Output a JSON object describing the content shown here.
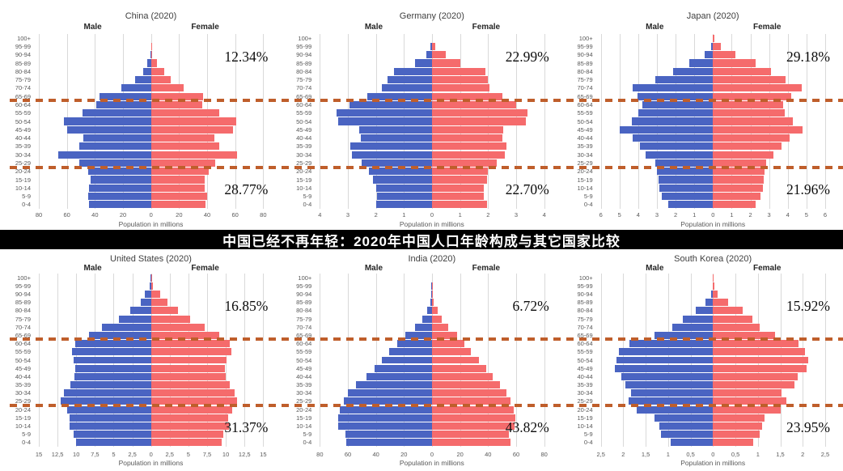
{
  "banner": {
    "title": "中国已经不再年轻：2020年中国人口年龄构成与其它国家比较",
    "bg_color": "#000000",
    "text_color": "#ffffff"
  },
  "shared": {
    "male_label": "Male",
    "female_label": "Female",
    "xlabel": "Population in millions",
    "age_groups": [
      "100+",
      "95-99",
      "90-94",
      "85-89",
      "80-84",
      "75-79",
      "70-74",
      "65-69",
      "60-64",
      "55-59",
      "50-54",
      "45-49",
      "40-44",
      "35-39",
      "30-34",
      "25-29",
      "20-24",
      "15-19",
      "10-14",
      "5-9",
      "0-4"
    ],
    "colors": {
      "male": "#4a64c2",
      "female": "#f56b6c",
      "gridline": "#d9d9d9",
      "dashed_line": "#bf5e2b",
      "axis_text": "#595959",
      "title_text": "#3f3f3f",
      "pct_text": "#0d0d0d"
    },
    "dashed_lines_note": "two horizontal dashed reference lines per row, at the 65-69/60-64 boundary and the 25-29/20-24 boundary, spanning the full image width"
  },
  "chart_data": {
    "type": "bar",
    "subtype": "population-pyramid",
    "legend_position": "none",
    "grid": true,
    "charts": [
      {
        "title": "China (2020)",
        "x_ticks": [
          "80",
          "60",
          "40",
          "20",
          "0",
          "20",
          "40",
          "60",
          "80"
        ],
        "axis_max": 80,
        "male": [
          0,
          0.1,
          0.3,
          2.7,
          5.8,
          11.5,
          21,
          36.5,
          39,
          49,
          62,
          60,
          48.5,
          51,
          66,
          51,
          45,
          43,
          44,
          45,
          44
        ],
        "female": [
          0,
          0.3,
          0.6,
          4.2,
          9.2,
          13.8,
          23,
          37,
          36.5,
          48.5,
          61,
          58.5,
          45,
          48.5,
          61.5,
          46,
          41,
          38,
          38,
          40,
          39
        ],
        "pct_top": "12.34%",
        "pct_bottom": "28.77%"
      },
      {
        "title": "Germany (2020)",
        "x_ticks": [
          "4",
          "3",
          "2",
          "1",
          "0",
          "1",
          "2",
          "3",
          "4"
        ],
        "axis_max": 4,
        "male": [
          0,
          0.05,
          0.2,
          0.6,
          1.35,
          1.6,
          1.8,
          2.3,
          2.95,
          3.4,
          3.35,
          2.6,
          2.55,
          2.9,
          2.85,
          2.5,
          2.25,
          2.1,
          2.0,
          1.95,
          2.0
        ],
        "female": [
          0,
          0.12,
          0.5,
          1.0,
          1.9,
          2.0,
          2.05,
          2.5,
          3.0,
          3.4,
          3.35,
          2.55,
          2.5,
          2.65,
          2.6,
          2.3,
          2.0,
          1.95,
          1.85,
          1.85,
          1.95
        ],
        "pct_top": "22.99%",
        "pct_bottom": "22.70%"
      },
      {
        "title": "Japan (2020)",
        "x_ticks": [
          "6",
          "5",
          "4",
          "3",
          "2",
          "1",
          "0",
          "1",
          "2",
          "3",
          "4",
          "5",
          "6"
        ],
        "axis_max": 6,
        "male": [
          0.02,
          0.09,
          0.45,
          1.25,
          2.15,
          3.1,
          4.3,
          4.05,
          3.8,
          4.0,
          4.35,
          5.0,
          4.3,
          3.9,
          3.6,
          3.1,
          3.0,
          2.9,
          2.85,
          2.75,
          2.4
        ],
        "female": [
          0.06,
          0.4,
          1.2,
          2.3,
          3.1,
          3.9,
          4.75,
          4.2,
          3.75,
          3.85,
          4.25,
          4.8,
          4.1,
          3.65,
          3.25,
          2.85,
          2.75,
          2.7,
          2.65,
          2.55,
          2.3
        ],
        "pct_top": "29.18%",
        "pct_bottom": "21.96%"
      },
      {
        "title": "United States (2020)",
        "x_ticks": [
          "15",
          "12,5",
          "10",
          "7,5",
          "5",
          "2,5",
          "0",
          "2,5",
          "5",
          "7,5",
          "10",
          "12,5",
          "15"
        ],
        "axis_max": 15,
        "male": [
          0.05,
          0.2,
          0.8,
          1.4,
          2.75,
          4.3,
          6.6,
          8.3,
          10.1,
          10.6,
          10.4,
          10.1,
          10.2,
          10.8,
          11.6,
          12.1,
          11.2,
          10.9,
          10.9,
          10.3,
          10.0
        ],
        "female": [
          0.1,
          0.3,
          1.2,
          2.2,
          3.6,
          5.2,
          7.2,
          9.1,
          10.5,
          10.8,
          10.1,
          9.9,
          10.0,
          10.5,
          11.2,
          11.5,
          10.9,
          10.3,
          10.4,
          9.7,
          9.5
        ],
        "pct_top": "16.85%",
        "pct_bottom": "31.37%"
      },
      {
        "title": "India (2020)",
        "x_ticks": [
          "80",
          "60",
          "40",
          "20",
          "0",
          "20",
          "40",
          "60",
          "80"
        ],
        "axis_max": 80,
        "male": [
          0,
          0.3,
          0.7,
          1.4,
          3.7,
          7.2,
          11.9,
          19,
          24.8,
          30.4,
          35.9,
          40.7,
          46.6,
          54.4,
          60,
          62.8,
          65.5,
          67,
          66.8,
          62,
          61.2
        ],
        "female": [
          0,
          0.3,
          0.8,
          1.4,
          4.3,
          7.2,
          11.5,
          17.7,
          22.8,
          27.9,
          33.3,
          38.4,
          43,
          48.5,
          52.8,
          56,
          58.3,
          59.4,
          59,
          54.8,
          55.7
        ],
        "pct_top": "6.72%",
        "pct_bottom": "43.82%"
      },
      {
        "title": "South Korea (2020)",
        "x_ticks": [
          "2,5",
          "2",
          "1,5",
          "1",
          "0,5",
          "0",
          "0,5",
          "1",
          "1,5",
          "2",
          "2,5"
        ],
        "axis_max": 2.5,
        "male": [
          0,
          0.01,
          0.05,
          0.16,
          0.39,
          0.67,
          0.91,
          1.3,
          1.87,
          2.1,
          2.16,
          2.19,
          2.04,
          1.95,
          1.83,
          1.89,
          1.7,
          1.3,
          1.19,
          1.16,
          0.95
        ],
        "female": [
          0.01,
          0.03,
          0.11,
          0.34,
          0.66,
          0.87,
          1.04,
          1.38,
          1.9,
          2.05,
          2.13,
          2.08,
          1.88,
          1.81,
          1.52,
          1.63,
          1.5,
          1.14,
          1.09,
          1.04,
          0.89
        ],
        "pct_top": "15.92%",
        "pct_bottom": "23.95%"
      }
    ]
  }
}
